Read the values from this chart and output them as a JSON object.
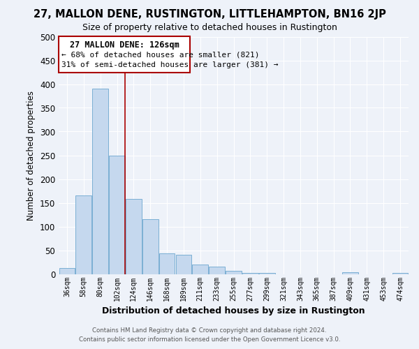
{
  "title": "27, MALLON DENE, RUSTINGTON, LITTLEHAMPTON, BN16 2JP",
  "subtitle": "Size of property relative to detached houses in Rustington",
  "xlabel": "Distribution of detached houses by size in Rustington",
  "ylabel": "Number of detached properties",
  "bar_color": "#c5d8ee",
  "bar_edge_color": "#7bafd4",
  "vline_color": "#aa0000",
  "annotation_title": "27 MALLON DENE: 126sqm",
  "annotation_line1": "← 68% of detached houses are smaller (821)",
  "annotation_line2": "31% of semi-detached houses are larger (381) →",
  "box_facecolor": "#ffffff",
  "box_edgecolor": "#aa0000",
  "categories": [
    "36sqm",
    "58sqm",
    "80sqm",
    "102sqm",
    "124sqm",
    "146sqm",
    "168sqm",
    "189sqm",
    "211sqm",
    "233sqm",
    "255sqm",
    "277sqm",
    "299sqm",
    "321sqm",
    "343sqm",
    "365sqm",
    "387sqm",
    "409sqm",
    "431sqm",
    "453sqm",
    "474sqm"
  ],
  "values": [
    13,
    165,
    390,
    250,
    158,
    115,
    44,
    40,
    20,
    15,
    7,
    2,
    2,
    0,
    0,
    0,
    0,
    3,
    0,
    0,
    2
  ],
  "ylim": [
    0,
    500
  ],
  "yticks": [
    0,
    50,
    100,
    150,
    200,
    250,
    300,
    350,
    400,
    450,
    500
  ],
  "vline_x_index": 3.5,
  "bg_color": "#eef2f9",
  "grid_color": "#ffffff",
  "footer_line1": "Contains HM Land Registry data © Crown copyright and database right 2024.",
  "footer_line2": "Contains public sector information licensed under the Open Government Licence v3.0."
}
